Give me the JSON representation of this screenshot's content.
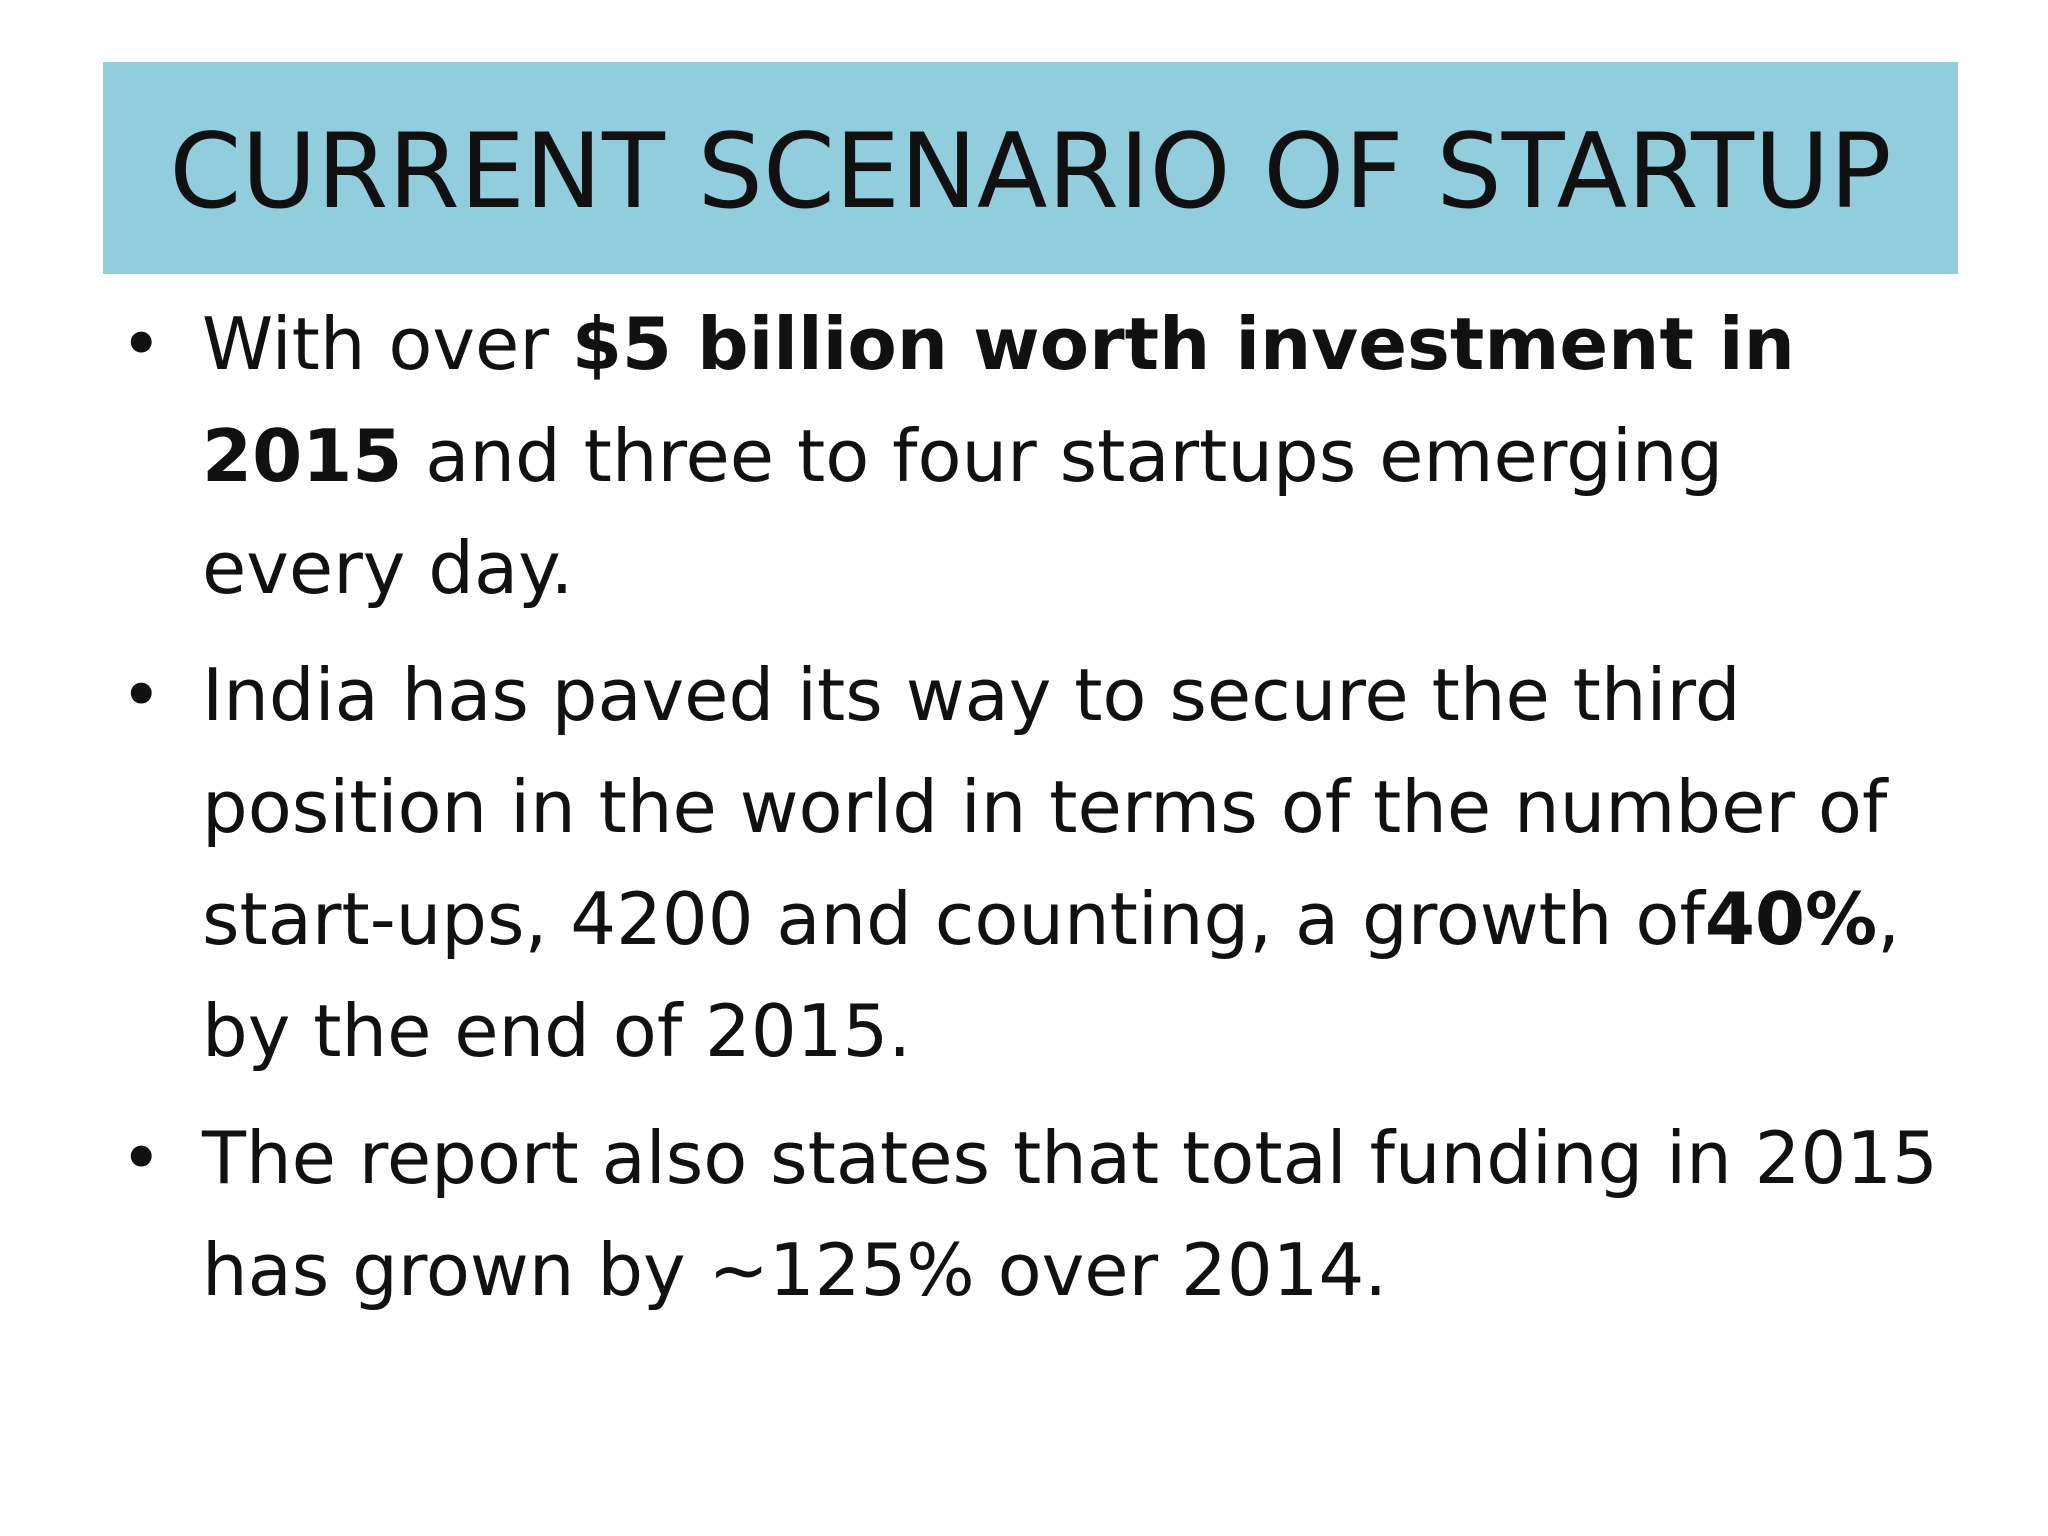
{
  "slide": {
    "title": "CURRENT SCENARIO OF STARTUP",
    "title_bar_color": "#92cddd",
    "bullet_symbol": "•",
    "bullets": [
      {
        "segments": [
          {
            "text": "With over ",
            "bold": false
          },
          {
            "text": "$5 billion worth investment in 2015",
            "bold": true
          },
          {
            "text": " and three to four startups emerging every day.",
            "bold": false
          }
        ]
      },
      {
        "segments": [
          {
            "text": " India has paved its way to secure the third position in the world in terms of the number of start-ups, 4200 and counting, a growth of",
            "bold": false
          },
          {
            "text": "40%",
            "bold": true
          },
          {
            "text": ", by the end of 2015.",
            "bold": false
          }
        ]
      },
      {
        "segments": [
          {
            "text": "The report also states that total funding in 2015 has grown by ~125% over 2014.",
            "bold": false
          }
        ]
      }
    ]
  }
}
